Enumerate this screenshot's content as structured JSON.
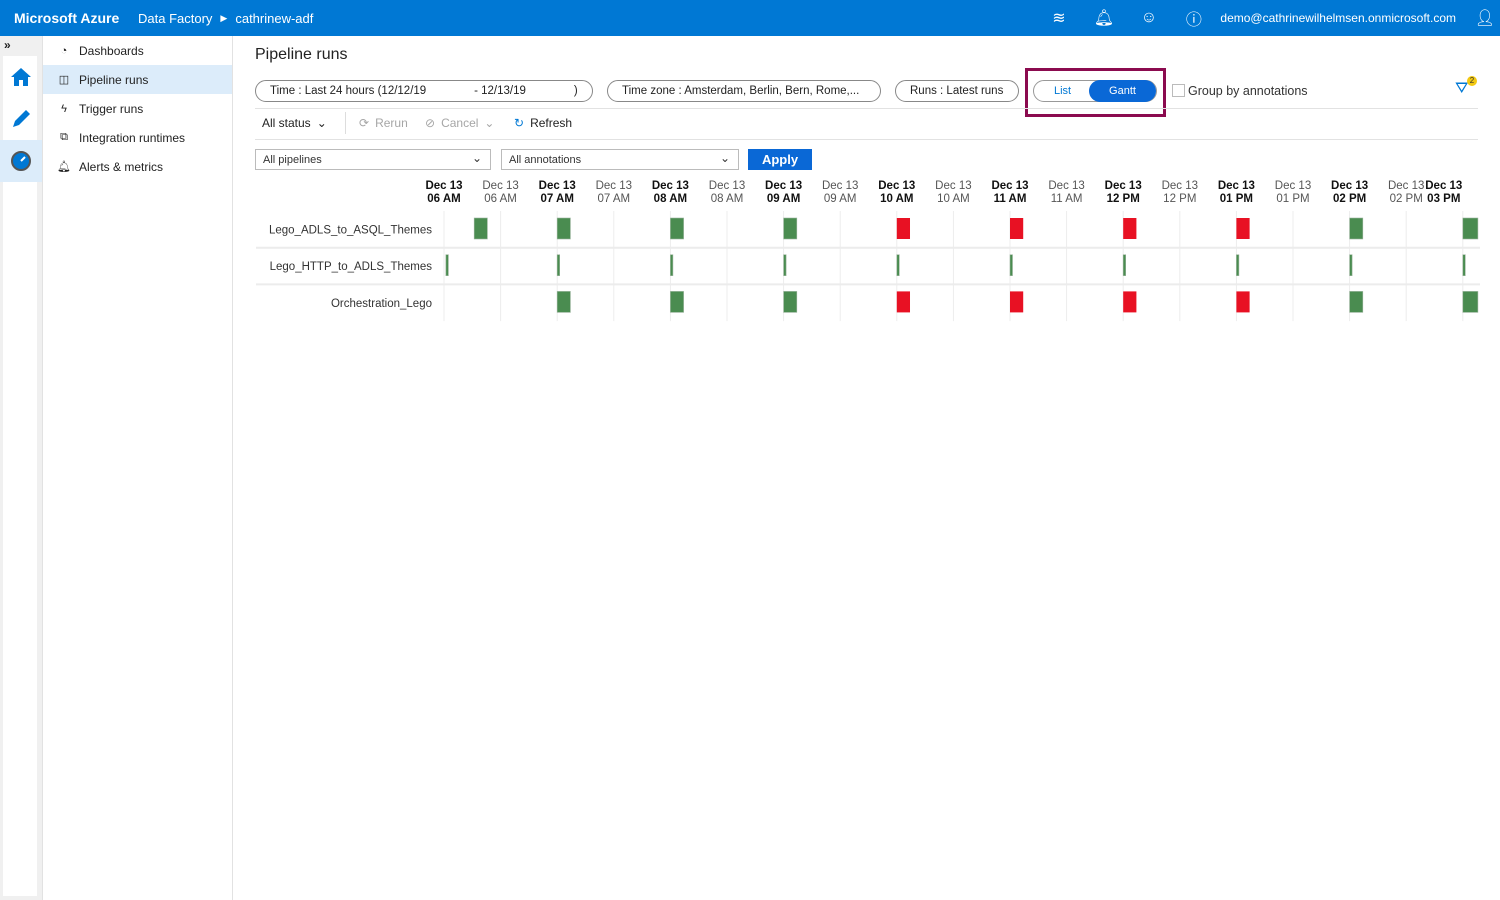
{
  "topbar": {
    "brand": "Microsoft Azure",
    "service": "Data Factory",
    "factory": "cathrinew-adf",
    "user": "demo@cathrinewilhelmsen.onmicrosoft.com"
  },
  "rail": {
    "expand": "»"
  },
  "sidebar": {
    "items": [
      {
        "label": "Dashboards",
        "icon": "dashboard-icon"
      },
      {
        "label": "Pipeline runs",
        "icon": "pipeline-icon",
        "active": true
      },
      {
        "label": "Trigger runs",
        "icon": "trigger-icon"
      },
      {
        "label": "Integration runtimes",
        "icon": "runtime-icon"
      },
      {
        "label": "Alerts & metrics",
        "icon": "bell-icon"
      }
    ]
  },
  "main": {
    "title": "Pipeline runs",
    "time_filter": "Time : Last 24 hours (12/12/19               - 12/13/19               )",
    "timezone_filter": "Time zone : Amsterdam, Berlin, Bern, Rome,...",
    "runs_filter": "Runs : Latest runs",
    "view_toggle": {
      "list": "List",
      "gantt": "Gantt",
      "selected": "Gantt"
    },
    "group_by": "Group by annotations",
    "group_by_checked": false,
    "filter_badge": "2",
    "status": "All status",
    "rerun": "Rerun",
    "cancel": "Cancel",
    "refresh": "Refresh",
    "pipelines_select": "All pipelines",
    "annotations_select": "All annotations",
    "apply": "Apply"
  },
  "colors": {
    "accent": "#0078d4",
    "succeeded": "#4a8c50",
    "failed": "#e81123",
    "highlight": "#8b0b4f"
  },
  "chart_data": {
    "type": "gantt",
    "time_axis": [
      {
        "date": "Dec 13",
        "time": "06 AM",
        "bold": true
      },
      {
        "date": "Dec 13",
        "time": "06 AM",
        "bold": false
      },
      {
        "date": "Dec 13",
        "time": "07 AM",
        "bold": true
      },
      {
        "date": "Dec 13",
        "time": "07 AM",
        "bold": false
      },
      {
        "date": "Dec 13",
        "time": "08 AM",
        "bold": true
      },
      {
        "date": "Dec 13",
        "time": "08 AM",
        "bold": false
      },
      {
        "date": "Dec 13",
        "time": "09 AM",
        "bold": true
      },
      {
        "date": "Dec 13",
        "time": "09 AM",
        "bold": false
      },
      {
        "date": "Dec 13",
        "time": "10 AM",
        "bold": true
      },
      {
        "date": "Dec 13",
        "time": "10 AM",
        "bold": false
      },
      {
        "date": "Dec 13",
        "time": "11 AM",
        "bold": true
      },
      {
        "date": "Dec 13",
        "time": "11 AM",
        "bold": false
      },
      {
        "date": "Dec 13",
        "time": "12 PM",
        "bold": true
      },
      {
        "date": "Dec 13",
        "time": "12 PM",
        "bold": false
      },
      {
        "date": "Dec 13",
        "time": "01 PM",
        "bold": true
      },
      {
        "date": "Dec 13",
        "time": "01 PM",
        "bold": false
      },
      {
        "date": "Dec 13",
        "time": "02 PM",
        "bold": true
      },
      {
        "date": "Dec 13",
        "time": "02 PM",
        "bold": false
      },
      {
        "date": "Dec 13",
        "time": "03 PM",
        "bold": true
      }
    ],
    "rows": [
      {
        "pipeline": "Lego_ADLS_to_ASQL_Themes",
        "runs": [
          {
            "start": "06:16",
            "minutes": 7,
            "status": "Succeeded"
          },
          {
            "start": "07:00",
            "minutes": 7,
            "status": "Succeeded"
          },
          {
            "start": "08:00",
            "minutes": 7,
            "status": "Succeeded"
          },
          {
            "start": "09:00",
            "minutes": 7,
            "status": "Succeeded"
          },
          {
            "start": "10:00",
            "minutes": 7,
            "status": "Failed"
          },
          {
            "start": "11:00",
            "minutes": 7,
            "status": "Failed"
          },
          {
            "start": "12:00",
            "minutes": 7,
            "status": "Failed"
          },
          {
            "start": "13:00",
            "minutes": 7,
            "status": "Failed"
          },
          {
            "start": "14:00",
            "minutes": 7,
            "status": "Succeeded"
          },
          {
            "start": "15:00",
            "minutes": 8,
            "status": "Succeeded"
          }
        ]
      },
      {
        "pipeline": "Lego_HTTP_to_ADLS_Themes",
        "runs": [
          {
            "start": "06:01",
            "minutes": 1,
            "status": "Succeeded"
          },
          {
            "start": "07:00",
            "minutes": 1,
            "status": "Succeeded"
          },
          {
            "start": "08:00",
            "minutes": 1,
            "status": "Succeeded"
          },
          {
            "start": "09:00",
            "minutes": 1,
            "status": "Succeeded"
          },
          {
            "start": "10:00",
            "minutes": 1,
            "status": "Succeeded"
          },
          {
            "start": "11:00",
            "minutes": 1,
            "status": "Succeeded"
          },
          {
            "start": "12:00",
            "minutes": 1,
            "status": "Succeeded"
          },
          {
            "start": "13:00",
            "minutes": 1,
            "status": "Succeeded"
          },
          {
            "start": "14:00",
            "minutes": 1,
            "status": "Succeeded"
          },
          {
            "start": "15:00",
            "minutes": 1,
            "status": "Succeeded"
          }
        ]
      },
      {
        "pipeline": "Orchestration_Lego",
        "runs": [
          {
            "start": "07:00",
            "minutes": 7,
            "status": "Succeeded"
          },
          {
            "start": "08:00",
            "minutes": 7,
            "status": "Succeeded"
          },
          {
            "start": "09:00",
            "minutes": 7,
            "status": "Succeeded"
          },
          {
            "start": "10:00",
            "minutes": 7,
            "status": "Failed"
          },
          {
            "start": "11:00",
            "minutes": 7,
            "status": "Failed"
          },
          {
            "start": "12:00",
            "minutes": 7,
            "status": "Failed"
          },
          {
            "start": "13:00",
            "minutes": 7,
            "status": "Failed"
          },
          {
            "start": "14:00",
            "minutes": 7,
            "status": "Succeeded"
          },
          {
            "start": "15:00",
            "minutes": 8,
            "status": "Succeeded"
          }
        ]
      }
    ]
  }
}
